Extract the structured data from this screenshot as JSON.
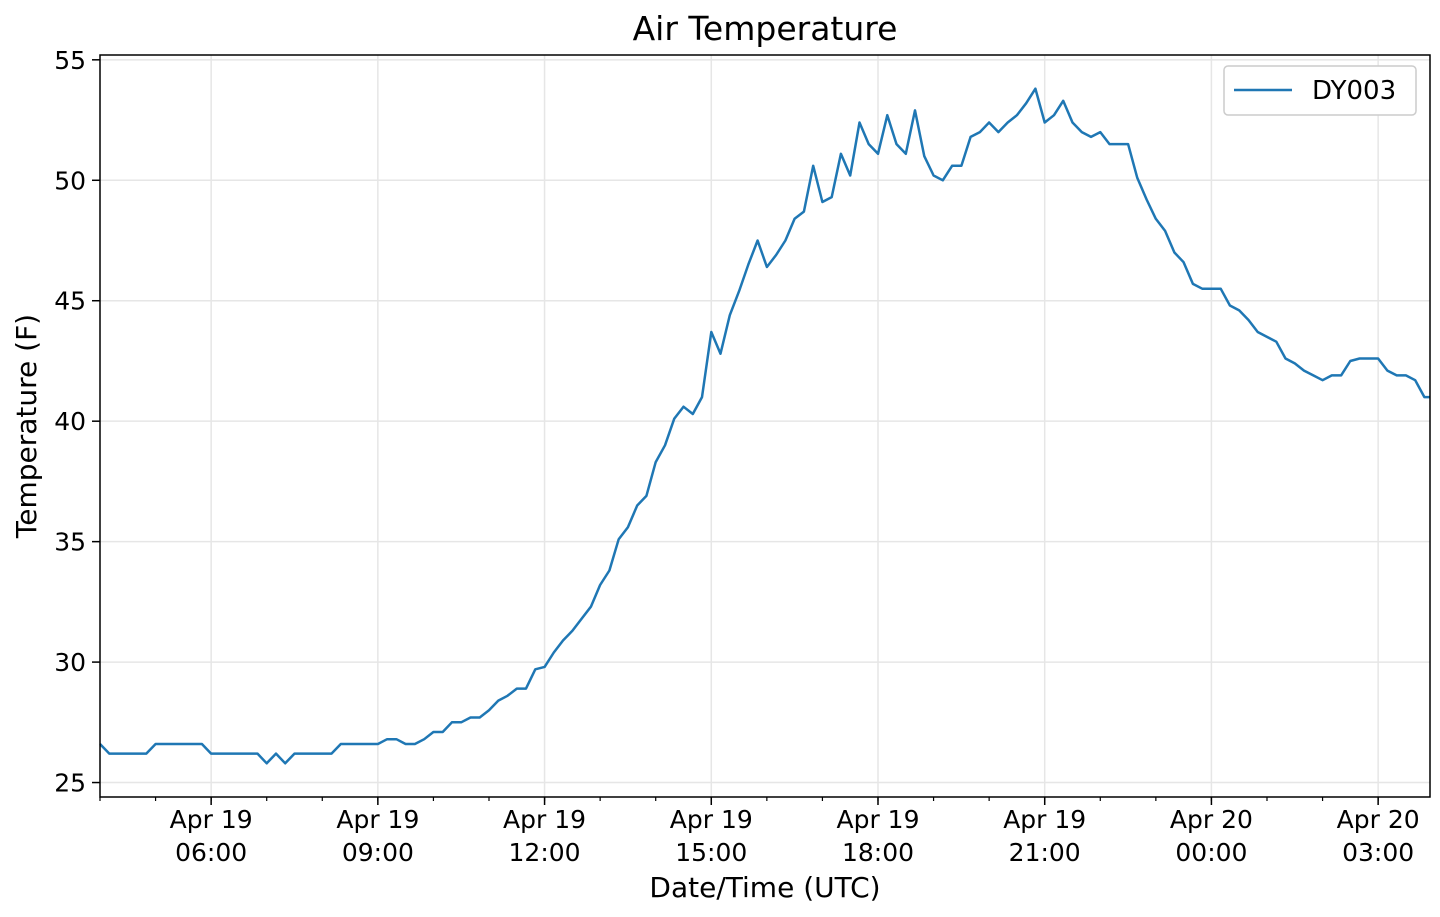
{
  "chart_data": {
    "type": "line",
    "title": "Air Temperature",
    "xlabel": "Date/Time (UTC)",
    "ylabel": "Temperature (F)",
    "x_range": [
      "2024-04-19T04:00",
      "2024-04-20T03:56"
    ],
    "ylim": [
      24.4,
      55.2
    ],
    "y_ticks": [
      25,
      30,
      35,
      40,
      45,
      50,
      55
    ],
    "x_ticks": [
      {
        "t": "2024-04-19T06:00",
        "line1": "Apr 19",
        "line2": "06:00"
      },
      {
        "t": "2024-04-19T09:00",
        "line1": "Apr 19",
        "line2": "09:00"
      },
      {
        "t": "2024-04-19T12:00",
        "line1": "Apr 19",
        "line2": "12:00"
      },
      {
        "t": "2024-04-19T15:00",
        "line1": "Apr 19",
        "line2": "15:00"
      },
      {
        "t": "2024-04-19T18:00",
        "line1": "Apr 19",
        "line2": "18:00"
      },
      {
        "t": "2024-04-19T21:00",
        "line1": "Apr 19",
        "line2": "21:00"
      },
      {
        "t": "2024-04-20T00:00",
        "line1": "Apr 20",
        "line2": "00:00"
      },
      {
        "t": "2024-04-20T03:00",
        "line1": "Apr 20",
        "line2": "03:00"
      }
    ],
    "grid": true,
    "legend_position": "upper right",
    "colors": {
      "series": "#1f77b4",
      "grid": "#e6e6e6",
      "axes": "#000000"
    },
    "series": [
      {
        "name": "DY003",
        "x": [
          "2024-04-19T04:00",
          "2024-04-19T04:10",
          "2024-04-19T04:20",
          "2024-04-19T04:30",
          "2024-04-19T04:40",
          "2024-04-19T04:50",
          "2024-04-19T05:00",
          "2024-04-19T05:10",
          "2024-04-19T05:20",
          "2024-04-19T05:30",
          "2024-04-19T05:40",
          "2024-04-19T05:50",
          "2024-04-19T06:00",
          "2024-04-19T06:10",
          "2024-04-19T06:20",
          "2024-04-19T06:30",
          "2024-04-19T06:40",
          "2024-04-19T06:50",
          "2024-04-19T07:00",
          "2024-04-19T07:10",
          "2024-04-19T07:20",
          "2024-04-19T07:30",
          "2024-04-19T07:40",
          "2024-04-19T07:50",
          "2024-04-19T08:00",
          "2024-04-19T08:10",
          "2024-04-19T08:20",
          "2024-04-19T08:30",
          "2024-04-19T08:40",
          "2024-04-19T08:50",
          "2024-04-19T09:00",
          "2024-04-19T09:10",
          "2024-04-19T09:20",
          "2024-04-19T09:30",
          "2024-04-19T09:40",
          "2024-04-19T09:50",
          "2024-04-19T10:00",
          "2024-04-19T10:10",
          "2024-04-19T10:20",
          "2024-04-19T10:30",
          "2024-04-19T10:40",
          "2024-04-19T10:50",
          "2024-04-19T11:00",
          "2024-04-19T11:10",
          "2024-04-19T11:20",
          "2024-04-19T11:30",
          "2024-04-19T11:40",
          "2024-04-19T11:50",
          "2024-04-19T12:00",
          "2024-04-19T12:10",
          "2024-04-19T12:20",
          "2024-04-19T12:30",
          "2024-04-19T12:40",
          "2024-04-19T12:50",
          "2024-04-19T13:00",
          "2024-04-19T13:10",
          "2024-04-19T13:20",
          "2024-04-19T13:30",
          "2024-04-19T13:40",
          "2024-04-19T13:50",
          "2024-04-19T14:00",
          "2024-04-19T14:10",
          "2024-04-19T14:20",
          "2024-04-19T14:30",
          "2024-04-19T14:40",
          "2024-04-19T14:50",
          "2024-04-19T15:00",
          "2024-04-19T15:10",
          "2024-04-19T15:20",
          "2024-04-19T15:30",
          "2024-04-19T15:40",
          "2024-04-19T15:50",
          "2024-04-19T16:00",
          "2024-04-19T16:10",
          "2024-04-19T16:20",
          "2024-04-19T16:30",
          "2024-04-19T16:40",
          "2024-04-19T16:50",
          "2024-04-19T17:00",
          "2024-04-19T17:10",
          "2024-04-19T17:20",
          "2024-04-19T17:30",
          "2024-04-19T17:40",
          "2024-04-19T17:50",
          "2024-04-19T18:00",
          "2024-04-19T18:10",
          "2024-04-19T18:20",
          "2024-04-19T18:30",
          "2024-04-19T18:40",
          "2024-04-19T18:50",
          "2024-04-19T19:00",
          "2024-04-19T19:10",
          "2024-04-19T19:20",
          "2024-04-19T19:30",
          "2024-04-19T19:40",
          "2024-04-19T19:50",
          "2024-04-19T20:00",
          "2024-04-19T20:10",
          "2024-04-19T20:20",
          "2024-04-19T20:30",
          "2024-04-19T20:40",
          "2024-04-19T20:50",
          "2024-04-19T21:00",
          "2024-04-19T21:10",
          "2024-04-19T21:20",
          "2024-04-19T21:30",
          "2024-04-19T21:40",
          "2024-04-19T21:50",
          "2024-04-19T22:00",
          "2024-04-19T22:10",
          "2024-04-19T22:20",
          "2024-04-19T22:30",
          "2024-04-19T22:40",
          "2024-04-19T22:50",
          "2024-04-19T23:00",
          "2024-04-19T23:10",
          "2024-04-19T23:20",
          "2024-04-19T23:30",
          "2024-04-19T23:40",
          "2024-04-19T23:50",
          "2024-04-20T00:00",
          "2024-04-20T00:10",
          "2024-04-20T00:20",
          "2024-04-20T00:30",
          "2024-04-20T00:40",
          "2024-04-20T00:50",
          "2024-04-20T01:00",
          "2024-04-20T01:10",
          "2024-04-20T01:20",
          "2024-04-20T01:30",
          "2024-04-20T01:40",
          "2024-04-20T01:50",
          "2024-04-20T02:00",
          "2024-04-20T02:10",
          "2024-04-20T02:20",
          "2024-04-20T02:30",
          "2024-04-20T02:40",
          "2024-04-20T02:50",
          "2024-04-20T03:00",
          "2024-04-20T03:10",
          "2024-04-20T03:20",
          "2024-04-20T03:30",
          "2024-04-20T03:40",
          "2024-04-20T03:50",
          "2024-04-20T03:56"
        ],
        "y": [
          26.6,
          26.2,
          26.2,
          26.2,
          26.2,
          26.2,
          26.6,
          26.6,
          26.6,
          26.6,
          26.6,
          26.6,
          26.2,
          26.2,
          26.2,
          26.2,
          26.2,
          26.2,
          25.8,
          26.2,
          25.8,
          26.2,
          26.2,
          26.2,
          26.2,
          26.2,
          26.6,
          26.6,
          26.6,
          26.6,
          26.6,
          26.8,
          26.8,
          26.6,
          26.6,
          26.8,
          27.1,
          27.1,
          27.5,
          27.5,
          27.7,
          27.7,
          28.0,
          28.4,
          28.6,
          28.9,
          28.9,
          29.7,
          29.8,
          30.4,
          30.9,
          31.3,
          31.8,
          32.3,
          33.2,
          33.8,
          35.1,
          35.6,
          36.5,
          36.9,
          38.3,
          39.0,
          40.1,
          40.6,
          40.3,
          41.0,
          43.7,
          42.8,
          44.4,
          45.4,
          46.5,
          47.5,
          46.4,
          46.9,
          47.5,
          48.4,
          48.7,
          50.6,
          49.1,
          49.3,
          51.1,
          50.2,
          52.4,
          51.5,
          51.1,
          52.7,
          51.5,
          51.1,
          52.9,
          51.0,
          50.2,
          50.0,
          50.6,
          50.6,
          51.8,
          52.0,
          52.4,
          52.0,
          52.4,
          52.7,
          53.2,
          53.8,
          52.4,
          52.7,
          53.3,
          52.4,
          52.0,
          51.8,
          52.0,
          51.5,
          51.5,
          51.5,
          50.1,
          49.2,
          48.4,
          47.9,
          47.0,
          46.6,
          45.7,
          45.5,
          45.5,
          45.5,
          44.8,
          44.6,
          44.2,
          43.7,
          43.5,
          43.3,
          42.6,
          42.4,
          42.1,
          41.9,
          41.7,
          41.9,
          41.9,
          42.5,
          42.6,
          42.6,
          42.6,
          42.1,
          41.9,
          41.9,
          41.7,
          41.0,
          41.0
        ]
      }
    ]
  }
}
